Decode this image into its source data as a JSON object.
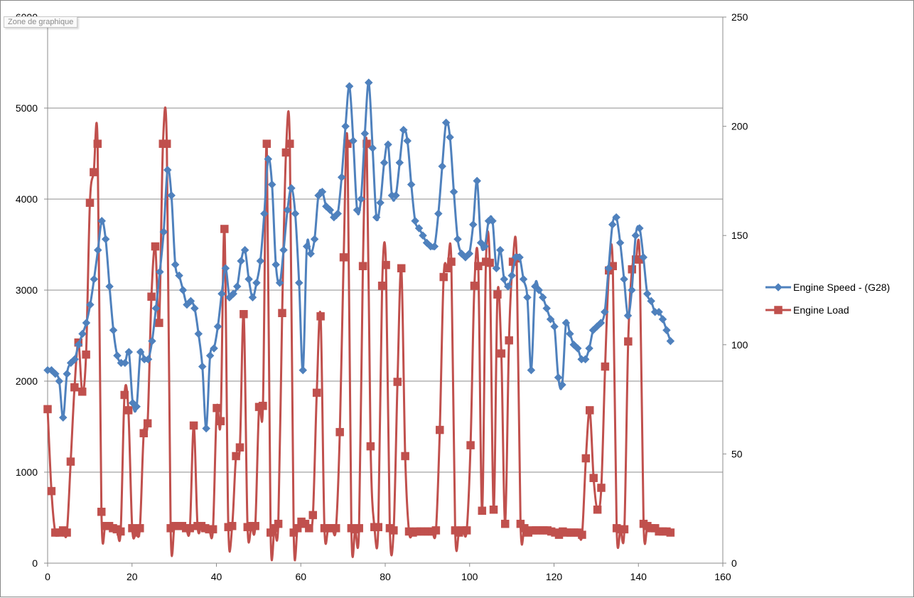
{
  "chart_area_tag": "Zone de graphique",
  "chart_data": {
    "type": "line",
    "title": "",
    "xlabel": "",
    "ylabel": "",
    "xlim": [
      0,
      160
    ],
    "ylim_left": [
      0,
      6000
    ],
    "ylim_right": [
      0,
      250
    ],
    "x_ticks": [
      0,
      20,
      40,
      60,
      80,
      100,
      120,
      140,
      160
    ],
    "y_left_ticks": [
      0,
      1000,
      2000,
      3000,
      4000,
      5000,
      6000
    ],
    "y_right_ticks": [
      0,
      50,
      100,
      150,
      200,
      250
    ],
    "grid": true,
    "legend_position": "right",
    "series": [
      {
        "name": "Engine Speed - (G28)",
        "axis": "left",
        "color": "#4F81BD",
        "marker": "diamond",
        "values": [
          2120,
          2120,
          2080,
          2000,
          1600,
          2080,
          2200,
          2240,
          2400,
          2520,
          2640,
          2840,
          3120,
          3440,
          3760,
          3560,
          3040,
          2560,
          2280,
          2200,
          2200,
          2320,
          1760,
          1720,
          2320,
          2240,
          2240,
          2440,
          2800,
          3200,
          3640,
          4320,
          4040,
          3280,
          3160,
          3000,
          2840,
          2880,
          2800,
          2520,
          2160,
          1480,
          2280,
          2360,
          2600,
          2960,
          3240,
          2920,
          2960,
          3040,
          3320,
          3440,
          3120,
          2920,
          3080,
          3320,
          3840,
          4440,
          4160,
          3280,
          3080,
          3440,
          3880,
          4120,
          3840,
          3080,
          2120,
          3480,
          3400,
          3560,
          4040,
          4080,
          3920,
          3880,
          3800,
          3840,
          4240,
          4800,
          5240,
          4640,
          3880,
          4000,
          4720,
          5280,
          4560,
          3800,
          3960,
          4400,
          4600,
          4040,
          4040,
          4400,
          4760,
          4640,
          4160,
          3760,
          3680,
          3600,
          3520,
          3480,
          3480,
          3840,
          4360,
          4840,
          4680,
          4080,
          3560,
          3400,
          3360,
          3400,
          3720,
          4200,
          3520,
          3480,
          3760,
          3760,
          3240,
          3440,
          3120,
          3040,
          3160,
          3360,
          3360,
          3120,
          2920,
          2120,
          3040,
          3000,
          2920,
          2800,
          2680,
          2600,
          2040,
          1960,
          2640,
          2520,
          2400,
          2360,
          2240,
          2240,
          2360,
          2560,
          2600,
          2640,
          2760,
          3240,
          3720,
          3800,
          3520,
          3120,
          2720,
          3000,
          3600,
          3680,
          3360,
          2960,
          2880,
          2760,
          2760,
          2680,
          2560,
          2440
        ]
      },
      {
        "name": "Engine Load",
        "axis": "right",
        "color": "#C0504D",
        "marker": "square",
        "values": [
          70.5,
          33,
          14,
          14,
          15,
          14,
          46.5,
          80.5,
          101,
          78.5,
          95.5,
          165,
          179,
          192,
          23.5,
          17,
          17,
          16,
          15.5,
          14.5,
          77,
          70,
          16,
          14,
          16,
          59.5,
          64,
          122,
          145,
          110,
          192,
          192,
          16,
          17,
          17,
          17,
          16,
          16,
          63,
          17,
          17,
          16,
          15.5,
          15.5,
          71,
          65,
          153,
          16.5,
          17,
          49,
          53,
          114,
          16.5,
          17,
          17,
          71.5,
          72,
          192,
          14,
          16,
          18,
          114.5,
          188,
          192,
          14,
          16,
          19,
          18,
          16,
          22,
          78,
          113,
          16,
          16,
          16,
          16,
          60,
          140,
          192,
          16,
          15.5,
          16,
          136,
          192,
          53.5,
          16.5,
          16.5,
          127,
          136.5,
          16,
          15,
          83,
          135,
          49,
          14.5,
          14,
          14.5,
          14.5,
          14.5,
          14.5,
          14.5,
          15,
          61,
          131,
          135,
          138,
          15,
          14,
          15,
          15,
          54,
          127,
          136,
          24,
          138,
          137.5,
          24.5,
          123,
          96,
          18,
          102,
          138,
          139.5,
          18,
          16,
          14,
          15,
          15,
          15,
          15,
          15,
          14.5,
          14,
          13,
          14.5,
          14,
          14,
          14,
          14,
          13,
          48,
          70,
          39,
          24.5,
          34.5,
          90,
          134,
          136,
          16,
          15.5,
          15.5,
          101.5,
          134.5,
          139,
          139,
          18,
          17,
          16,
          16,
          14.5,
          14.5,
          14.5,
          14
        ]
      }
    ]
  }
}
